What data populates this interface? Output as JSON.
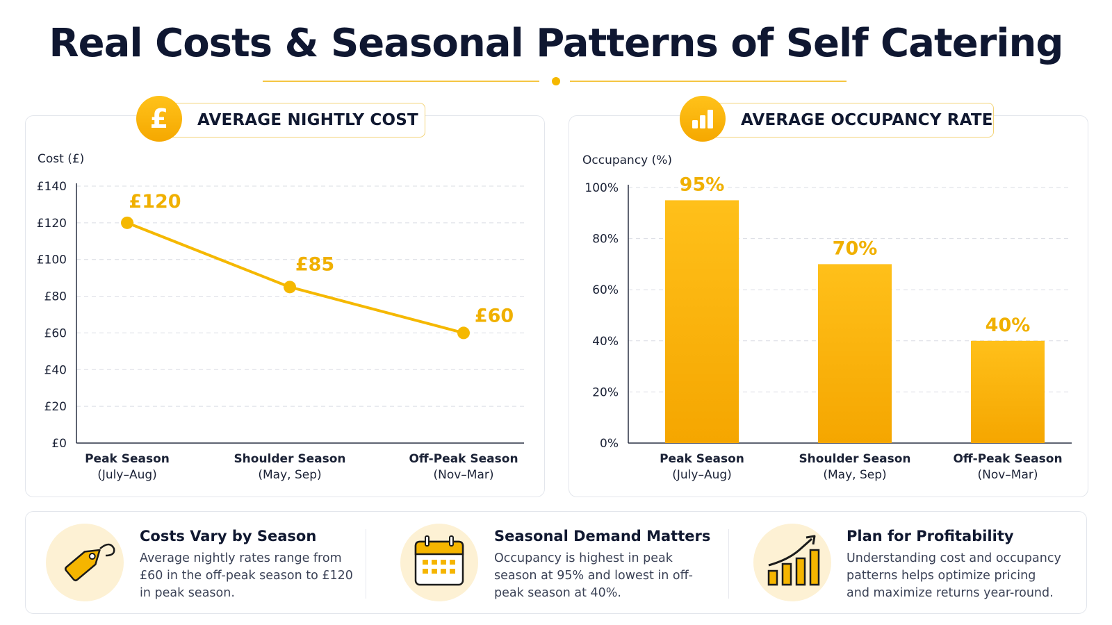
{
  "title": "Real Costs & Seasonal Patterns of Self Catering",
  "colors": {
    "accent": "#f5b800",
    "accent_dark": "#f5a500",
    "label": "#f0b000"
  },
  "cost_panel": {
    "title": "AVERAGE NIGHTLY COST",
    "icon": "pound-icon",
    "icon_glyph": "£"
  },
  "occupancy_panel": {
    "title": "AVERAGE OCCUPANCY RATE",
    "icon": "bar-chart-icon"
  },
  "chart_data": [
    {
      "type": "line",
      "ylabel": "Cost (£)",
      "categories": [
        [
          "Peak Season",
          "(July–Aug)"
        ],
        [
          "Shoulder Season",
          "(May, Sep)"
        ],
        [
          "Off-Peak Season",
          "(Nov–Mar)"
        ]
      ],
      "values": [
        120,
        85,
        60
      ],
      "data_labels": [
        "£120",
        "£85",
        "£60"
      ],
      "ylim": [
        0,
        140
      ],
      "yticks": [
        0,
        20,
        40,
        60,
        80,
        100,
        120,
        140
      ],
      "ytick_labels": [
        "£0",
        "£20",
        "£40",
        "£60",
        "£80",
        "£100",
        "£120",
        "£140"
      ],
      "grid": true
    },
    {
      "type": "bar",
      "ylabel": "Occupancy (%)",
      "categories": [
        [
          "Peak Season",
          "(July–Aug)"
        ],
        [
          "Shoulder Season",
          "(May, Sep)"
        ],
        [
          "Off-Peak Season",
          "(Nov–Mar)"
        ]
      ],
      "values": [
        95,
        70,
        40
      ],
      "data_labels": [
        "95%",
        "70%",
        "40%"
      ],
      "ylim": [
        0,
        100
      ],
      "yticks": [
        0,
        20,
        40,
        60,
        80,
        100
      ],
      "ytick_labels": [
        "0%",
        "20%",
        "40%",
        "60%",
        "80%",
        "100%"
      ],
      "grid": true
    }
  ],
  "insights": [
    {
      "icon": "price-tag-icon",
      "title": "Costs Vary by Season",
      "text": "Average nightly rates range from £60 in the off-peak season to £120 in peak season."
    },
    {
      "icon": "calendar-icon",
      "title": "Seasonal Demand Matters",
      "text": "Occupancy is highest in peak season at 95% and lowest in off-peak season at 40%."
    },
    {
      "icon": "growth-chart-icon",
      "title": "Plan for Profitability",
      "text": "Understanding cost and occupancy patterns helps optimize pricing and maximize returns year-round."
    }
  ]
}
